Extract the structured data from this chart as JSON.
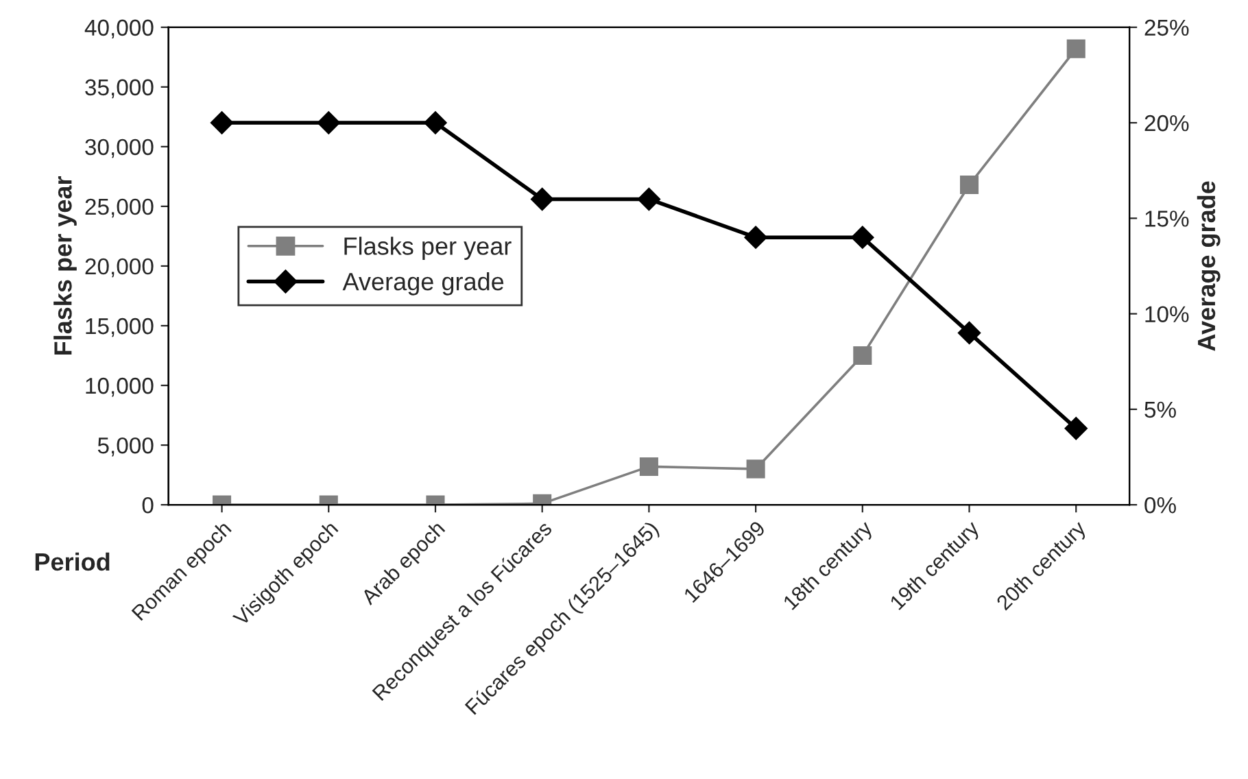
{
  "chart_data": {
    "type": "line",
    "xlabel": "Period",
    "ylabel": "Flasks per year",
    "y2label": "Average grade",
    "categories": [
      "Roman epoch",
      "Visigoth epoch",
      "Arab epoch",
      "Reconquest a los Fúcares",
      "Fúcares epoch (1525–1645)",
      "1646–1699",
      "18th century",
      "19th century",
      "20th century"
    ],
    "series": [
      {
        "name": "Flasks per year",
        "color": "#7f7f7f",
        "marker": "square",
        "values": [
          0,
          0,
          0,
          100,
          3200,
          3000,
          12500,
          26800,
          38200
        ]
      },
      {
        "name": "Average grade",
        "color": "#000000",
        "marker": "diamond",
        "axis": "y2",
        "values": [
          20,
          20,
          20,
          16,
          16,
          14,
          14,
          9,
          4
        ]
      }
    ],
    "ylim": [
      0,
      40000
    ],
    "yticks": [
      {
        "value": 0,
        "label": "0"
      },
      {
        "value": 5000,
        "label": "5,000"
      },
      {
        "value": 10000,
        "label": "10,000"
      },
      {
        "value": 15000,
        "label": "15,000"
      },
      {
        "value": 20000,
        "label": "20,000"
      },
      {
        "value": 25000,
        "label": "25,000"
      },
      {
        "value": 30000,
        "label": "30,000"
      },
      {
        "value": 35000,
        "label": "35,000"
      },
      {
        "value": 40000,
        "label": "40,000"
      }
    ],
    "y2lim": [
      0,
      25
    ],
    "y2ticks": [
      {
        "value": 0,
        "label": "0%"
      },
      {
        "value": 5,
        "label": "5%"
      },
      {
        "value": 10,
        "label": "10%"
      },
      {
        "value": 15,
        "label": "15%"
      },
      {
        "value": 20,
        "label": "20%"
      },
      {
        "value": 25,
        "label": "25%"
      }
    ],
    "grid": false,
    "legend": "center left",
    "line_style": "solid"
  }
}
